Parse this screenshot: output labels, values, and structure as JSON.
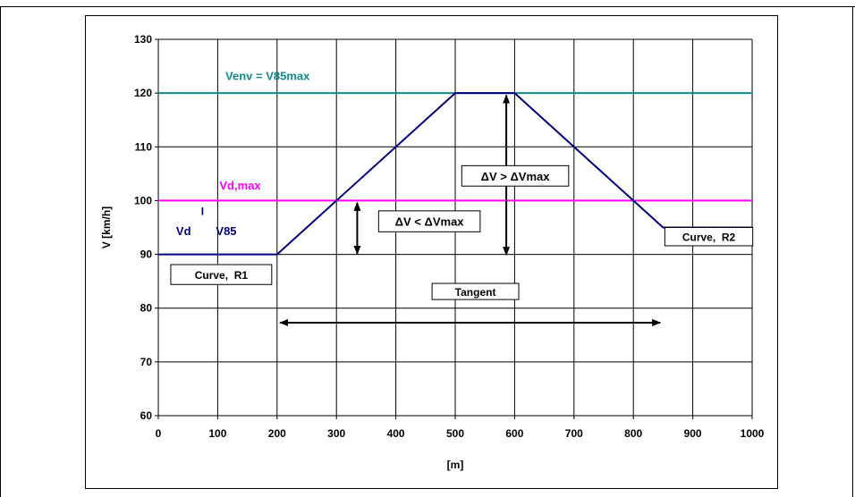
{
  "chart_data": {
    "type": "line",
    "xlabel": "[m]",
    "ylabel": "V [km/h]",
    "xlim": [
      0,
      1000
    ],
    "ylim": [
      60,
      130
    ],
    "xticks": [
      0,
      100,
      200,
      300,
      400,
      500,
      600,
      700,
      800,
      900,
      1000
    ],
    "yticks": [
      60,
      70,
      80,
      90,
      100,
      110,
      120,
      130
    ],
    "grid": true,
    "series": [
      {
        "name": "Venv = V85max",
        "color": "#138a8a",
        "x": [
          0,
          1000
        ],
        "y": [
          120,
          120
        ]
      },
      {
        "name": "Vd,max",
        "color": "#ff00ff",
        "x": [
          0,
          1000
        ],
        "y": [
          100,
          100
        ]
      },
      {
        "name": "V85",
        "color": "#000080",
        "x": [
          0,
          200,
          500,
          600,
          800,
          850,
          1000
        ],
        "y": [
          90,
          90,
          120,
          120,
          100,
          95,
          95
        ]
      }
    ],
    "annotations": {
      "venv": "Venv = V85max",
      "vdmax": "Vd,max",
      "vd": "Vd",
      "sep": "I",
      "v85": "V85",
      "dv_lt": "ΔV < ΔVmax",
      "dv_gt": "ΔV > ΔVmax",
      "curve_r1": "Curve,  R1",
      "curve_r2": "Curve,  R2",
      "tangent": "Tangent"
    }
  }
}
